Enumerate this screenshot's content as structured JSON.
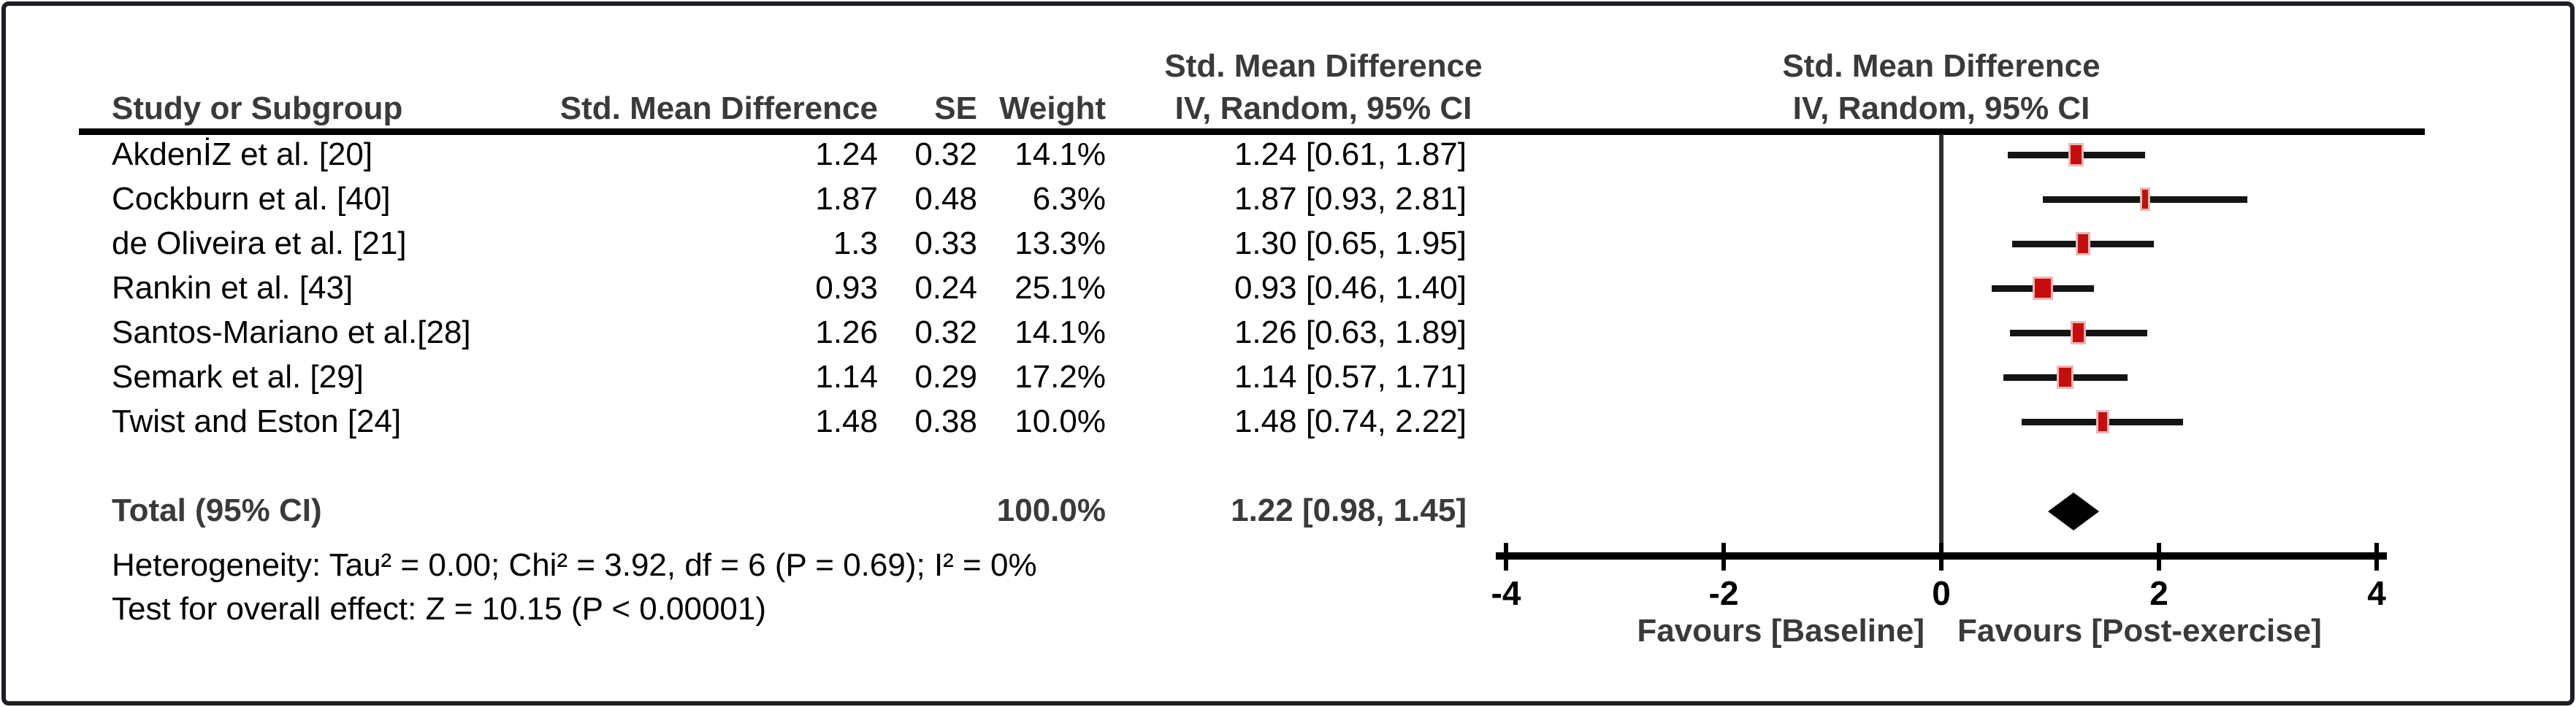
{
  "table": {
    "header_row1": {
      "smd_ci_label": "Std. Mean Difference",
      "plot_label": "Std. Mean Difference"
    },
    "header_row2": {
      "study": "Study or Subgroup",
      "smd": "Std. Mean Difference",
      "se": "SE",
      "weight": "Weight",
      "iv_ci": "IV, Random, 95% CI",
      "iv_ci_plot": "IV, Random, 95% CI"
    },
    "rows": [
      {
        "study": "AkdenİZ et al. [20]",
        "smd": "1.24",
        "se": "0.32",
        "weight": "14.1%",
        "ci": "1.24 [0.61, 1.87]"
      },
      {
        "study": "Cockburn et al. [40]",
        "smd": "1.87",
        "se": "0.48",
        "weight": "6.3%",
        "ci": "1.87 [0.93, 2.81]"
      },
      {
        "study": "de Oliveira et al. [21]",
        "smd": "1.3",
        "se": "0.33",
        "weight": "13.3%",
        "ci": "1.30 [0.65, 1.95]"
      },
      {
        "study": "Rankin et al. [43]",
        "smd": "0.93",
        "se": "0.24",
        "weight": "25.1%",
        "ci": "0.93 [0.46, 1.40]"
      },
      {
        "study": "Santos-Mariano et al.[28]",
        "smd": "1.26",
        "se": "0.32",
        "weight": "14.1%",
        "ci": "1.26 [0.63, 1.89]"
      },
      {
        "study": "Semark et al. [29]",
        "smd": "1.14",
        "se": "0.29",
        "weight": "17.2%",
        "ci": "1.14 [0.57, 1.71]"
      },
      {
        "study": "Twist and Eston [24]",
        "smd": "1.48",
        "se": "0.38",
        "weight": "10.0%",
        "ci": "1.48 [0.74, 2.22]"
      }
    ],
    "total": {
      "label": "Total (95% CI)",
      "weight": "100.0%",
      "ci": "1.22 [0.98, 1.45]"
    }
  },
  "footer": {
    "heterogeneity": "Heterogeneity: Tau² = 0.00; Chi² = 3.92, df = 6 (P = 0.69); I² = 0%",
    "overall_effect": "Test for overall effect: Z = 10.15 (P < 0.00001)"
  },
  "chart_data": {
    "type": "forest",
    "effect_measure": "Std. Mean Difference",
    "model": "IV, Random, 95% CI",
    "studies": [
      "AkdenİZ et al. [20]",
      "Cockburn et al. [40]",
      "de Oliveira et al. [21]",
      "Rankin et al. [43]",
      "Santos-Mariano et al.[28]",
      "Semark et al. [29]",
      "Twist and Eston [24]"
    ],
    "smd": [
      1.24,
      1.87,
      1.3,
      0.93,
      1.26,
      1.14,
      1.48
    ],
    "se": [
      0.32,
      0.48,
      0.33,
      0.24,
      0.32,
      0.29,
      0.38
    ],
    "weight_pct": [
      14.1,
      6.3,
      13.3,
      25.1,
      14.1,
      17.2,
      10.0
    ],
    "ci_low": [
      0.61,
      0.93,
      0.65,
      0.46,
      0.63,
      0.57,
      0.74
    ],
    "ci_high": [
      1.87,
      2.81,
      1.95,
      1.4,
      1.89,
      1.71,
      2.22
    ],
    "total": {
      "smd": 1.22,
      "ci_low": 0.98,
      "ci_high": 1.45,
      "weight_pct": 100.0
    },
    "axis": {
      "min": -4,
      "max": 4,
      "ticks": [
        -4,
        -2,
        0,
        2,
        4
      ],
      "left_label": "Favours [Baseline]",
      "right_label": "Favours [Post-exercise]"
    },
    "heterogeneity": {
      "tau2": 0.0,
      "chi2": 3.92,
      "df": 6,
      "p": 0.69,
      "i2_pct": 0
    },
    "overall_effect": {
      "z": 10.15,
      "p": "< 0.00001"
    },
    "marker_color": "#C40E0E",
    "line_color": "#141414",
    "diamond_color": "#000000"
  }
}
